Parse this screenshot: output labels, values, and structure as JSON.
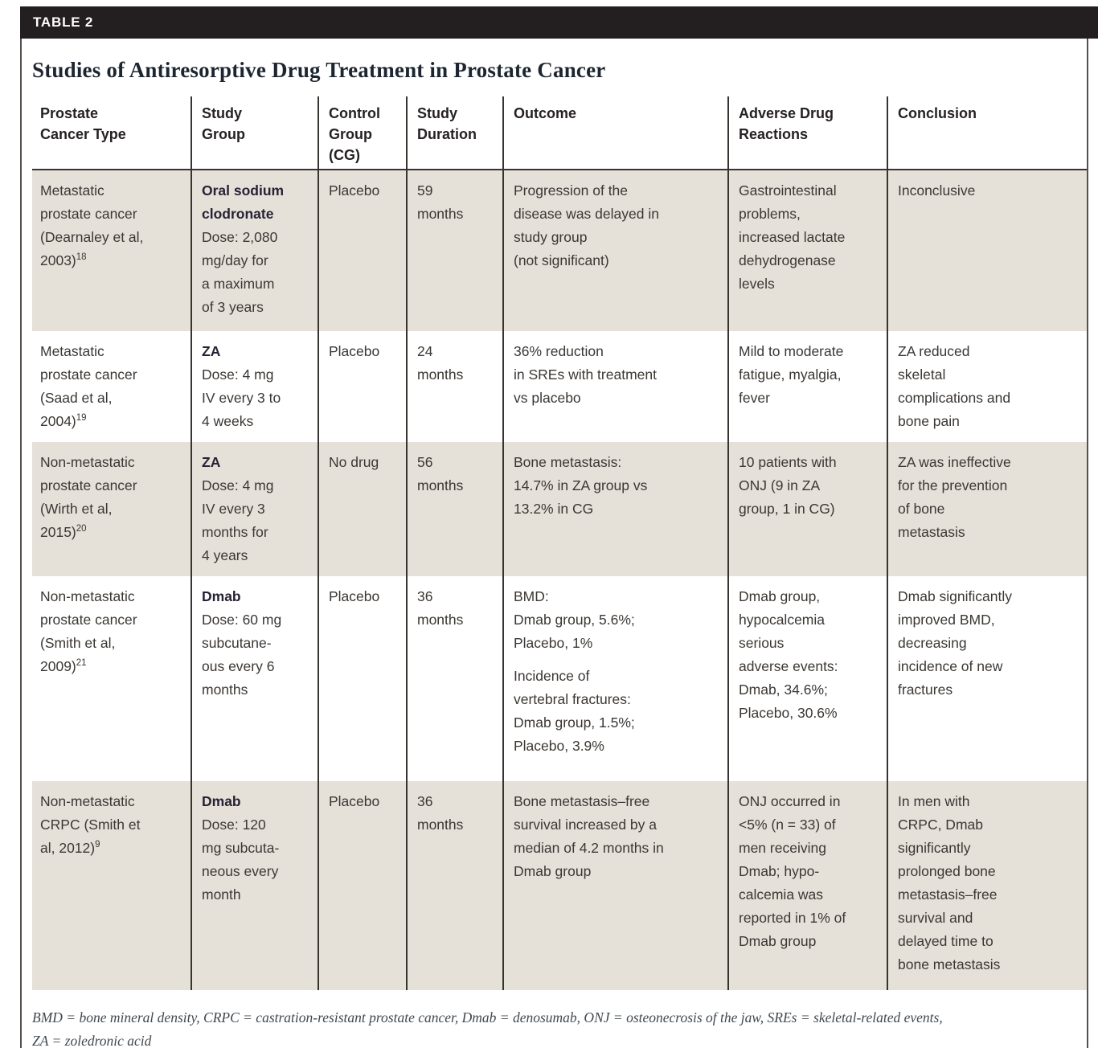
{
  "page": {
    "table_label": "TABLE 2",
    "title": "Studies of Antiresorptive Drug Treatment in Prostate Cancer",
    "footnote_line1": "BMD = bone mineral density, CRPC = castration-resistant prostate cancer, Dmab = denosumab, ONJ = osteonecrosis of the jaw, SREs = skeletal-related events,",
    "footnote_line2": "ZA = zoledronic acid"
  },
  "colors": {
    "header_bar": "#231f20",
    "shaded_row": "#e5e1d9",
    "rule": "#37332e",
    "frame_rule": "#55504b",
    "body_text": "#3b3733",
    "heading_text": "#262122",
    "drug_text": "#272135",
    "title_text": "#1d2630",
    "footnote_text": "#414950"
  },
  "table": {
    "columns": [
      "Prostate\nCancer Type",
      "Study\nGroup",
      "Control\nGroup\n(CG)",
      "Study\nDuration",
      "Outcome",
      "Adverse Drug\nReactions",
      "Conclusion"
    ],
    "rows": [
      {
        "cancer_type": "Metastatic\nprostate cancer\n(Dearnaley et al,\n2003)",
        "ref": "18",
        "study_drug": "Oral sodium\nclodronate",
        "study_dose": "Dose: 2,080\nmg/day for\na maximum\nof 3 years",
        "control_group": "Placebo",
        "duration": "59\nmonths",
        "outcome": "Progression of the\ndisease was delayed in\nstudy group\n(not significant)",
        "adverse": "Gastrointestinal\nproblems,\nincreased lactate\ndehydrogenase\nlevels",
        "conclusion": "Inconclusive"
      },
      {
        "cancer_type": "Metastatic\nprostate cancer\n(Saad et al,\n2004)",
        "ref": "19",
        "study_drug": "ZA",
        "study_dose": "Dose: 4 mg\nIV every 3 to\n4 weeks",
        "control_group": "Placebo",
        "duration": "24\nmonths",
        "outcome": "36% reduction\nin SREs with treatment\nvs placebo",
        "adverse": "Mild to moderate\nfatigue, myalgia,\nfever",
        "conclusion": "ZA reduced\nskeletal\ncomplications and\nbone pain"
      },
      {
        "cancer_type": "Non-metastatic\nprostate cancer\n(Wirth et al,\n2015)",
        "ref": "20",
        "study_drug": "ZA",
        "study_dose": "Dose: 4 mg\nIV every 3\nmonths for\n4 years",
        "control_group": "No drug",
        "duration": "56\nmonths",
        "outcome": "Bone metastasis:\n14.7% in ZA group vs\n13.2% in CG",
        "adverse": "10 patients with\nONJ (9 in ZA\ngroup, 1 in CG)",
        "conclusion": "ZA was ineffective\nfor the prevention\nof bone\nmetastasis"
      },
      {
        "cancer_type": "Non-metastatic\nprostate cancer\n(Smith et al,\n2009)",
        "ref": "21",
        "study_drug": "Dmab",
        "study_dose": "Dose: 60 mg\nsubcutane-\nous every 6\nmonths",
        "control_group": "Placebo",
        "duration": "36\nmonths",
        "outcome": "BMD:\nDmab group, 5.6%;\nPlacebo, 1%",
        "outcome_extra": "Incidence of\nvertebral fractures:\nDmab group, 1.5%;\nPlacebo, 3.9%",
        "adverse": "Dmab group,\nhypocalcemia\nserious\nadverse events:\nDmab, 34.6%;\nPlacebo, 30.6%",
        "conclusion": "Dmab significantly\nimproved BMD,\ndecreasing\nincidence of new\nfractures"
      },
      {
        "cancer_type": "Non-metastatic\nCRPC (Smith et\nal, 2012)",
        "ref": "9",
        "study_drug": "Dmab",
        "study_dose": "Dose: 120\nmg subcuta-\nneous every\nmonth",
        "control_group": "Placebo",
        "duration": "36\nmonths",
        "outcome": "Bone metastasis–free\nsurvival increased by a\nmedian of 4.2 months in\nDmab group",
        "adverse": "ONJ occurred in\n<5% (n = 33) of\nmen receiving\nDmab; hypo-\ncalcemia was\nreported in 1% of\nDmab group",
        "conclusion": "In men with\nCRPC, Dmab\nsignificantly\nprolonged bone\nmetastasis–free\nsurvival and\ndelayed time to\nbone metastasis"
      }
    ]
  }
}
